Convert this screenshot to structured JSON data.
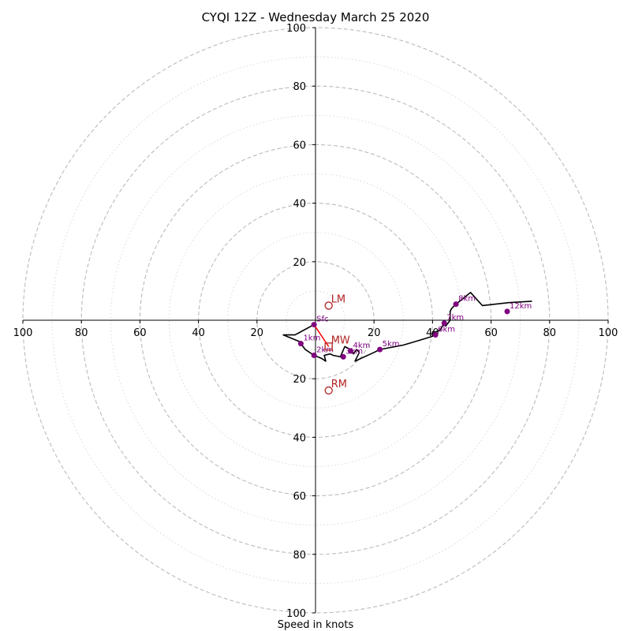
{
  "chart_data": {
    "type": "line",
    "title": "CYQI 12Z - Wednesday March 25 2020",
    "xlabel": "Speed in knots",
    "ylabel": "",
    "xlim": [
      -100,
      100
    ],
    "ylim": [
      -100,
      100
    ],
    "axis_tick_labels": {
      "x": [
        {
          "value": -100,
          "label": "100"
        },
        {
          "value": -80,
          "label": "80"
        },
        {
          "value": -60,
          "label": "60"
        },
        {
          "value": -40,
          "label": "40"
        },
        {
          "value": -20,
          "label": "20"
        },
        {
          "value": 20,
          "label": "20"
        },
        {
          "value": 40,
          "label": "40"
        },
        {
          "value": 60,
          "label": "60"
        },
        {
          "value": 80,
          "label": "80"
        },
        {
          "value": 100,
          "label": "100"
        }
      ],
      "y": [
        {
          "value": 100,
          "label": "100"
        },
        {
          "value": 80,
          "label": "80"
        },
        {
          "value": 60,
          "label": "60"
        },
        {
          "value": 40,
          "label": "40"
        },
        {
          "value": 20,
          "label": "20"
        },
        {
          "value": -20,
          "label": "20"
        },
        {
          "value": -40,
          "label": "40"
        },
        {
          "value": -60,
          "label": "60"
        },
        {
          "value": -80,
          "label": "80"
        },
        {
          "value": -100,
          "label": "100"
        }
      ]
    },
    "rings_dashed": [
      20,
      40,
      60,
      80,
      100
    ],
    "rings_dotted": [
      10,
      30,
      50,
      70,
      90
    ],
    "hodograph": [
      [
        -0.5,
        -1.5
      ],
      [
        -7,
        -5
      ],
      [
        -11,
        -5
      ],
      [
        -5,
        -7.5
      ],
      [
        -5,
        -8
      ],
      [
        -3.5,
        -10
      ],
      [
        -0.5,
        -12
      ],
      [
        2,
        -13
      ],
      [
        3.5,
        -14
      ],
      [
        3,
        -12
      ],
      [
        5,
        -11.5
      ],
      [
        6,
        -12
      ],
      [
        8.5,
        -12.5
      ],
      [
        10,
        -9
      ],
      [
        12,
        -10
      ],
      [
        13,
        -11.5
      ],
      [
        14,
        -10
      ],
      [
        15,
        -11
      ],
      [
        14,
        -13
      ],
      [
        13.5,
        -14
      ],
      [
        20,
        -11
      ],
      [
        22,
        -10
      ],
      [
        30,
        -8.5
      ],
      [
        35,
        -7
      ],
      [
        40,
        -5.5
      ],
      [
        40,
        -4
      ],
      [
        41,
        -4
      ],
      [
        42.5,
        -3.5
      ],
      [
        44,
        -1
      ],
      [
        44.5,
        -2
      ],
      [
        46,
        0
      ],
      [
        46,
        3
      ],
      [
        46.5,
        4
      ],
      [
        48,
        5.5
      ],
      [
        53,
        9.5
      ],
      [
        57,
        5
      ],
      [
        66,
        6
      ],
      [
        74,
        6.5
      ]
    ],
    "height_markers": [
      {
        "label": "Sfc",
        "x": -0.5,
        "y": -1.5
      },
      {
        "label": "1km",
        "x": -5,
        "y": -8
      },
      {
        "label": "2km",
        "x": -0.5,
        "y": -12
      },
      {
        "label": "3km",
        "x": 9.5,
        "y": -12.5
      },
      {
        "label": "4km",
        "x": 12,
        "y": -10.5
      },
      {
        "label": "5km",
        "x": 22,
        "y": -10
      },
      {
        "label": "6km",
        "x": 41,
        "y": -5
      },
      {
        "label": "7km",
        "x": 44,
        "y": -1
      },
      {
        "label": "8km",
        "x": 48,
        "y": 5.5
      },
      {
        "label": "12km",
        "x": 65.5,
        "y": 3
      }
    ],
    "storm_motion": [
      {
        "label": "LM",
        "x": 4.5,
        "y": 5,
        "marker": "circle"
      },
      {
        "label": "MW",
        "x": 4.5,
        "y": -9,
        "marker": "square"
      },
      {
        "label": "RM",
        "x": 4.5,
        "y": -24,
        "marker": "circle"
      }
    ],
    "mean_wind_vector": {
      "from": [
        -0.5,
        -1.5
      ],
      "to": [
        4.5,
        -9
      ]
    },
    "colors": {
      "rings": "#bbbbbb",
      "axes": "#000000",
      "hodograph": "#000000",
      "markers": "#800080",
      "storm_motion": "#b22222",
      "vector": "#ff0000"
    }
  }
}
